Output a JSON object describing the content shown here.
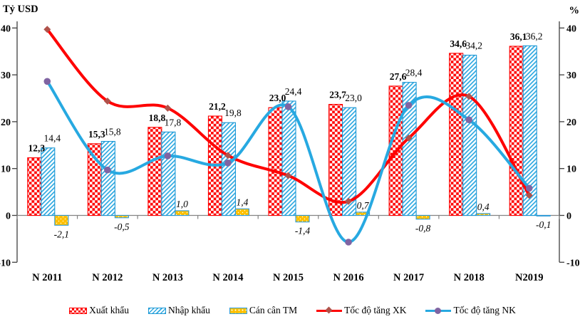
{
  "chart_data": {
    "type": "combo-bar-line",
    "left_axis_title": "Tỷ USD",
    "right_axis_title": "%",
    "categories": [
      "N 2011",
      "N 2012",
      "N 2013",
      "N 2014",
      "N 2015",
      "N 2016",
      "N 2017",
      "N 2018",
      "N2019"
    ],
    "axis_ticks": [
      "40",
      "30",
      "20",
      "10",
      "0",
      "-10"
    ],
    "axis_tick_values": [
      40,
      30,
      20,
      10,
      0,
      -10
    ],
    "left_ylim": [
      -10,
      40
    ],
    "right_ylim": [
      -10,
      40
    ],
    "grid": false,
    "legend_position": "bottom",
    "bar_series": [
      {
        "key": "xuat-khau",
        "name": "Xuất khẩu",
        "pattern": "red-checker",
        "color": "#fe0000",
        "border": "#fe0000",
        "label_style": "bold",
        "values": [
          12.3,
          15.3,
          18.8,
          21.2,
          23.0,
          23.7,
          27.6,
          34.6,
          36.1
        ],
        "labels": [
          "12,3",
          "15,3",
          "18,8",
          "21,2",
          "23,0",
          "23,7",
          "27,6",
          "34,6",
          "36,1"
        ]
      },
      {
        "key": "nhap-khau",
        "name": "Nhập khẩu",
        "pattern": "blue-diagonal-hatch",
        "color": "#2fa9e1",
        "border": "#1b97d4",
        "label_style": "normal",
        "values": [
          14.4,
          15.8,
          17.8,
          19.8,
          24.4,
          23.0,
          28.4,
          34.2,
          36.2
        ],
        "labels": [
          "14,4",
          "15,8",
          "17,8",
          "19,8",
          "24,4",
          "23,0",
          "28,4",
          "34,2",
          "36,2"
        ]
      },
      {
        "key": "can-can-tm",
        "name": "Cán cân TM",
        "pattern": "yellow-dots",
        "color": "#ffc000",
        "border": "#2f9bd8",
        "label_style": "italic",
        "values": [
          -2.1,
          -0.5,
          1.0,
          1.4,
          -1.4,
          0.7,
          -0.8,
          0.4,
          -0.1
        ],
        "labels": [
          "-2,1",
          "-0,5",
          "1,0",
          "1,4",
          "-1,4",
          "0,7",
          "-0,8",
          "0,4",
          "-0,1"
        ]
      }
    ],
    "line_series": [
      {
        "key": "toc-do-tang-xk",
        "name": "Tốc độ tăng XK",
        "color": "#fe0000",
        "marker": "diamond",
        "marker_color": "#b0524a",
        "values": [
          39.7,
          24.4,
          22.9,
          12.8,
          8.5,
          3.0,
          16.5,
          25.4,
          4.3
        ]
      },
      {
        "key": "toc-do-tang-nk",
        "name": "Tốc độ tăng NK",
        "color": "#27a9e1",
        "marker": "circle",
        "marker_color": "#8064a2",
        "values": [
          28.6,
          9.7,
          12.7,
          11.2,
          23.2,
          -5.7,
          23.5,
          20.4,
          5.8
        ]
      }
    ]
  },
  "colors": {
    "axis_vertical": "#3f3f3f",
    "axis_zero_line": "#848484",
    "text": "#000000"
  }
}
